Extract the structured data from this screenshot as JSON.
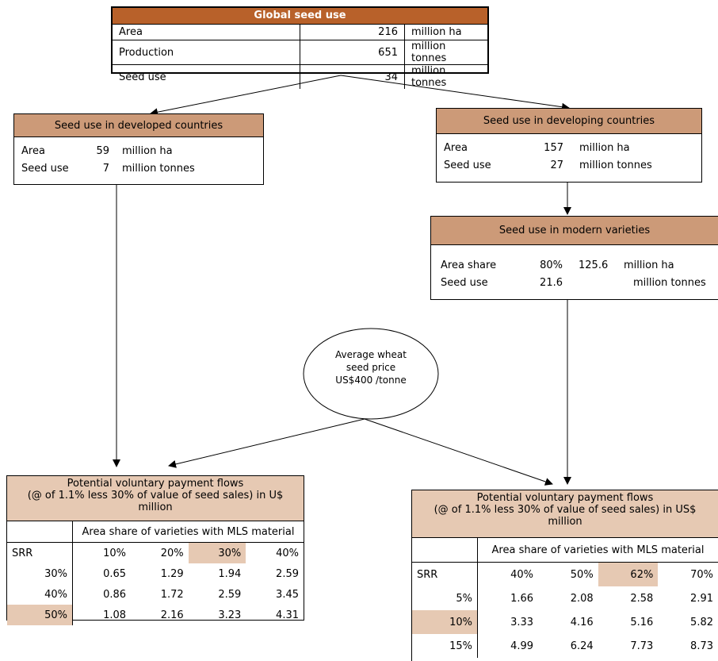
{
  "global": {
    "title": "Global seed use",
    "rows": [
      {
        "label": "Area",
        "value": "216",
        "unit": "million ha"
      },
      {
        "label": "Production",
        "value": "651",
        "unit": "million tonnes"
      },
      {
        "label": "Seed use",
        "value": "34",
        "unit": "million tonnes"
      }
    ]
  },
  "developed": {
    "title": "Seed use in developed countries",
    "rows": [
      {
        "label": "Area",
        "value": "59",
        "unit": "million ha"
      },
      {
        "label": "Seed use",
        "value": "7",
        "unit": "million tonnes"
      }
    ]
  },
  "developing": {
    "title": "Seed use in developing countries",
    "rows": [
      {
        "label": "Area",
        "value": "157",
        "unit": "million ha"
      },
      {
        "label": "Seed use",
        "value": "27",
        "unit": "million tonnes"
      }
    ]
  },
  "modern": {
    "title": "Seed use in modern varieties",
    "rows": [
      {
        "label": "Area share",
        "share": "80%",
        "value": "125.6",
        "unit": "million ha"
      },
      {
        "label": "Seed use",
        "share": "21.6",
        "value": "",
        "unit": "million tonnes"
      }
    ]
  },
  "price": {
    "line1": "Average  wheat",
    "line2": "seed price",
    "line3": "US$400 /tonne"
  },
  "payment_left": {
    "title_line1": "Potential voluntary payment flows",
    "title_line2": "(@ of 1.1% less 30% of value of seed sales) in U$",
    "title_line3": "million",
    "subheader": "Area share of varieties with MLS material",
    "row_header": "SRR",
    "cols": [
      "10%",
      "20%",
      "30%",
      "40%"
    ],
    "rows": [
      {
        "srr": "30%",
        "values": [
          "0.65",
          "1.29",
          "1.94",
          "2.59"
        ]
      },
      {
        "srr": "40%",
        "values": [
          "0.86",
          "1.72",
          "2.59",
          "3.45"
        ]
      },
      {
        "srr": "50%",
        "values": [
          "1.08",
          "2.16",
          "3.23",
          "4.31"
        ]
      }
    ]
  },
  "payment_right": {
    "title_line1": "Potential voluntary payment flows",
    "title_line2": "(@ of 1.1% less 30% of value of seed sales) in US$",
    "title_line3": "million",
    "subheader": "Area share of varieties with MLS material",
    "row_header": "SRR",
    "cols": [
      "40%",
      "50%",
      "62%",
      "70%"
    ],
    "rows": [
      {
        "srr": "5%",
        "values": [
          "1.66",
          "2.08",
          "2.58",
          "2.91"
        ]
      },
      {
        "srr": "10%",
        "values": [
          "3.33",
          "4.16",
          "5.16",
          "5.82"
        ]
      },
      {
        "srr": "15%",
        "values": [
          "4.99",
          "6.24",
          "7.73",
          "8.73"
        ]
      }
    ]
  },
  "colors": {
    "global_header": "#b8612a",
    "box_header": "#cc9a78",
    "highlight": "#e6c9b3"
  }
}
